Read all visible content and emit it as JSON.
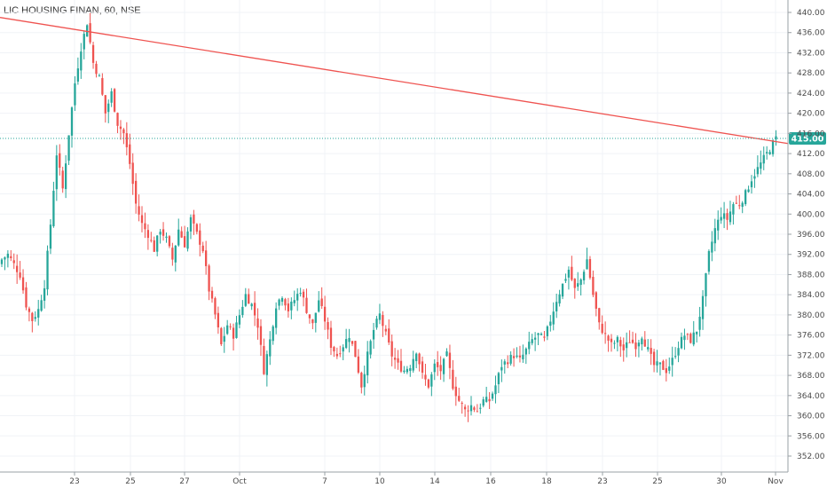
{
  "chart_data": {
    "type": "candlestick",
    "title": "LIC HOUSING FINAN, 60, NSE",
    "ylim": [
      349,
      442
    ],
    "y_ticks": [
      352,
      356,
      360,
      364,
      368,
      372,
      376,
      380,
      384,
      388,
      392,
      396,
      400,
      404,
      408,
      412,
      416,
      420,
      424,
      428,
      432,
      436,
      440
    ],
    "y_tick_labels": [
      "352.00",
      "356.00",
      "360.00",
      "364.00",
      "368.00",
      "372.00",
      "376.00",
      "380.00",
      "384.00",
      "388.00",
      "392.00",
      "396.00",
      "400.00",
      "404.00",
      "408.00",
      "412.00",
      "416.00",
      "420.00",
      "424.00",
      "428.00",
      "432.00",
      "436.00",
      "440.00"
    ],
    "x_labels": [
      "23",
      "25",
      "27",
      "Oct",
      "7",
      "10",
      "14",
      "16",
      "18",
      "23",
      "25",
      "30",
      "Nov"
    ],
    "last_price": 415,
    "last_price_label": "415.00",
    "up_color": "#26a69a",
    "down_color": "#ef5350",
    "trendline_color": "#ef5350",
    "grid": true,
    "trendline": {
      "start": 439,
      "end": 414
    },
    "anchors": [
      [
        0,
        391
      ],
      [
        2,
        392
      ],
      [
        4,
        390
      ],
      [
        6,
        388
      ],
      [
        8,
        382
      ],
      [
        10,
        379
      ],
      [
        12,
        381
      ],
      [
        14,
        386
      ],
      [
        16,
        398
      ],
      [
        18,
        412
      ],
      [
        20,
        405
      ],
      [
        22,
        416
      ],
      [
        24,
        426
      ],
      [
        26,
        433
      ],
      [
        28,
        438
      ],
      [
        30,
        430
      ],
      [
        32,
        427
      ],
      [
        34,
        420
      ],
      [
        36,
        424
      ],
      [
        38,
        418
      ],
      [
        40,
        416
      ],
      [
        42,
        410
      ],
      [
        44,
        402
      ],
      [
        46,
        398
      ],
      [
        48,
        396
      ],
      [
        50,
        393
      ],
      [
        52,
        397
      ],
      [
        54,
        395
      ],
      [
        56,
        391
      ],
      [
        58,
        397
      ],
      [
        60,
        394
      ],
      [
        62,
        399
      ],
      [
        64,
        396
      ],
      [
        66,
        393
      ],
      [
        68,
        385
      ],
      [
        70,
        380
      ],
      [
        72,
        374
      ],
      [
        74,
        378
      ],
      [
        76,
        376
      ],
      [
        78,
        380
      ],
      [
        80,
        384
      ],
      [
        82,
        382
      ],
      [
        84,
        378
      ],
      [
        86,
        369
      ],
      [
        88,
        375
      ],
      [
        90,
        382
      ],
      [
        92,
        384
      ],
      [
        94,
        381
      ],
      [
        96,
        383
      ],
      [
        98,
        385
      ],
      [
        100,
        381
      ],
      [
        102,
        378
      ],
      [
        104,
        383
      ],
      [
        106,
        379
      ],
      [
        108,
        374
      ],
      [
        110,
        372
      ],
      [
        112,
        374
      ],
      [
        114,
        376
      ],
      [
        116,
        372
      ],
      [
        118,
        366
      ],
      [
        120,
        372
      ],
      [
        122,
        377
      ],
      [
        124,
        380
      ],
      [
        126,
        376
      ],
      [
        128,
        372
      ],
      [
        130,
        370
      ],
      [
        132,
        369
      ],
      [
        134,
        370
      ],
      [
        136,
        373
      ],
      [
        138,
        368
      ],
      [
        140,
        366
      ],
      [
        142,
        370
      ],
      [
        144,
        369
      ],
      [
        146,
        372
      ],
      [
        148,
        366
      ],
      [
        150,
        363
      ],
      [
        152,
        361
      ],
      [
        154,
        362
      ],
      [
        156,
        361
      ],
      [
        158,
        363
      ],
      [
        160,
        363
      ],
      [
        162,
        366
      ],
      [
        164,
        370
      ],
      [
        166,
        371
      ],
      [
        168,
        372
      ],
      [
        170,
        371
      ],
      [
        172,
        373
      ],
      [
        174,
        375
      ],
      [
        176,
        376
      ],
      [
        178,
        375
      ],
      [
        180,
        379
      ],
      [
        182,
        383
      ],
      [
        184,
        386
      ],
      [
        186,
        389
      ],
      [
        188,
        385
      ],
      [
        190,
        387
      ],
      [
        192,
        391
      ],
      [
        194,
        384
      ],
      [
        196,
        378
      ],
      [
        198,
        376
      ],
      [
        200,
        374
      ],
      [
        202,
        375
      ],
      [
        204,
        373
      ],
      [
        206,
        375
      ],
      [
        208,
        374
      ],
      [
        210,
        376
      ],
      [
        212,
        373
      ],
      [
        214,
        370
      ],
      [
        216,
        370
      ],
      [
        218,
        369
      ],
      [
        220,
        371
      ],
      [
        222,
        374
      ],
      [
        224,
        376
      ],
      [
        226,
        375
      ],
      [
        228,
        377
      ],
      [
        230,
        383
      ],
      [
        232,
        392
      ],
      [
        234,
        397
      ],
      [
        236,
        400
      ],
      [
        238,
        399
      ],
      [
        240,
        402
      ],
      [
        242,
        402
      ],
      [
        244,
        404
      ],
      [
        246,
        407
      ],
      [
        248,
        409
      ],
      [
        250,
        411
      ],
      [
        252,
        413
      ],
      [
        254,
        415
      ]
    ]
  }
}
